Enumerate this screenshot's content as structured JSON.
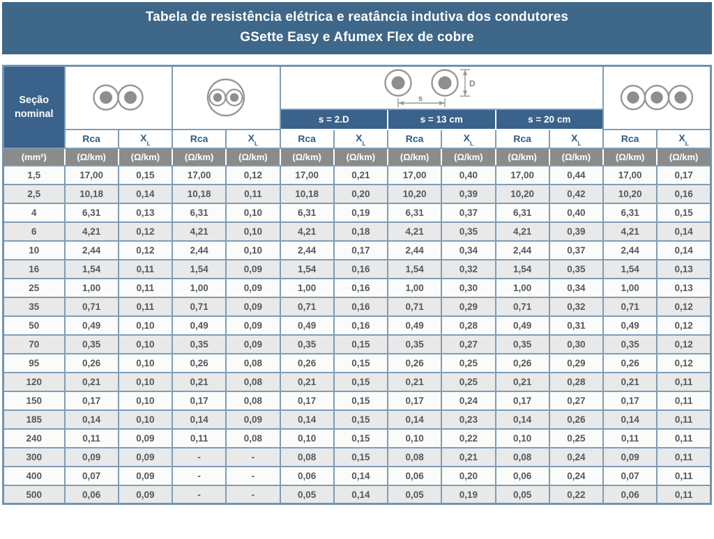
{
  "title": {
    "line1": "Tabela de resistência elétrica e reatância indutiva dos condutores",
    "line2": "GSette Easy e Afumex Flex de cobre"
  },
  "table": {
    "section_header": "Seção nominal",
    "section_unit": "(mm²)",
    "groups": [
      {
        "id": "two-single-cables",
        "description": "two single-core cables touching"
      },
      {
        "id": "two-core-cable",
        "description": "one cable with two cores"
      },
      {
        "id": "spaced-single-cables",
        "description": "two single-core cables spaced s apart, diameter D"
      },
      {
        "id": "three-single-cables",
        "description": "three single-core cables touching"
      }
    ],
    "spacing_subheaders": [
      "s = 2.D",
      "s = 13 cm",
      "s = 20 cm"
    ],
    "col_headers": {
      "rca": "Rca",
      "xl_base": "X",
      "xl_sub": "L"
    },
    "unit_label": "(Ω/km)",
    "diagram_labels": {
      "s": "s",
      "D": "D"
    },
    "rows": [
      [
        "1,5",
        "17,00",
        "0,15",
        "17,00",
        "0,12",
        "17,00",
        "0,21",
        "17,00",
        "0,40",
        "17,00",
        "0,44",
        "17,00",
        "0,17"
      ],
      [
        "2,5",
        "10,18",
        "0,14",
        "10,18",
        "0,11",
        "10,18",
        "0,20",
        "10,20",
        "0,39",
        "10,20",
        "0,42",
        "10,20",
        "0,16"
      ],
      [
        "4",
        "6,31",
        "0,13",
        "6,31",
        "0,10",
        "6,31",
        "0,19",
        "6,31",
        "0,37",
        "6,31",
        "0,40",
        "6,31",
        "0,15"
      ],
      [
        "6",
        "4,21",
        "0,12",
        "4,21",
        "0,10",
        "4,21",
        "0,18",
        "4,21",
        "0,35",
        "4,21",
        "0,39",
        "4,21",
        "0,14"
      ],
      [
        "10",
        "2,44",
        "0,12",
        "2,44",
        "0,10",
        "2,44",
        "0,17",
        "2,44",
        "0,34",
        "2,44",
        "0,37",
        "2,44",
        "0,14"
      ],
      [
        "16",
        "1,54",
        "0,11",
        "1,54",
        "0,09",
        "1,54",
        "0,16",
        "1,54",
        "0,32",
        "1,54",
        "0,35",
        "1,54",
        "0,13"
      ],
      [
        "25",
        "1,00",
        "0,11",
        "1,00",
        "0,09",
        "1,00",
        "0,16",
        "1,00",
        "0,30",
        "1,00",
        "0,34",
        "1,00",
        "0,13"
      ],
      [
        "35",
        "0,71",
        "0,11",
        "0,71",
        "0,09",
        "0,71",
        "0,16",
        "0,71",
        "0,29",
        "0,71",
        "0,32",
        "0,71",
        "0,12"
      ],
      [
        "50",
        "0,49",
        "0,10",
        "0,49",
        "0,09",
        "0,49",
        "0,16",
        "0,49",
        "0,28",
        "0,49",
        "0,31",
        "0,49",
        "0,12"
      ],
      [
        "70",
        "0,35",
        "0,10",
        "0,35",
        "0,09",
        "0,35",
        "0,15",
        "0,35",
        "0,27",
        "0,35",
        "0,30",
        "0,35",
        "0,12"
      ],
      [
        "95",
        "0,26",
        "0,10",
        "0,26",
        "0,08",
        "0,26",
        "0,15",
        "0,26",
        "0,25",
        "0,26",
        "0,29",
        "0,26",
        "0,12"
      ],
      [
        "120",
        "0,21",
        "0,10",
        "0,21",
        "0,08",
        "0,21",
        "0,15",
        "0,21",
        "0,25",
        "0,21",
        "0,28",
        "0,21",
        "0,11"
      ],
      [
        "150",
        "0,17",
        "0,10",
        "0,17",
        "0,08",
        "0,17",
        "0,15",
        "0,17",
        "0,24",
        "0,17",
        "0,27",
        "0,17",
        "0,11"
      ],
      [
        "185",
        "0,14",
        "0,10",
        "0,14",
        "0,09",
        "0,14",
        "0,15",
        "0,14",
        "0,23",
        "0,14",
        "0,26",
        "0,14",
        "0,11"
      ],
      [
        "240",
        "0,11",
        "0,09",
        "0,11",
        "0,08",
        "0,10",
        "0,15",
        "0,10",
        "0,22",
        "0,10",
        "0,25",
        "0,11",
        "0,11"
      ],
      [
        "300",
        "0,09",
        "0,09",
        "-",
        "-",
        "0,08",
        "0,15",
        "0,08",
        "0,21",
        "0,08",
        "0,24",
        "0,09",
        "0,11"
      ],
      [
        "400",
        "0,07",
        "0,09",
        "-",
        "-",
        "0,06",
        "0,14",
        "0,06",
        "0,20",
        "0,06",
        "0,24",
        "0,07",
        "0,11"
      ],
      [
        "500",
        "0,06",
        "0,09",
        "-",
        "-",
        "0,05",
        "0,14",
        "0,05",
        "0,19",
        "0,05",
        "0,22",
        "0,06",
        "0,11"
      ]
    ]
  },
  "colors": {
    "title_bar": "#3E6789",
    "header_blue": "#3A628A",
    "header_text_blue": "#2D5C84",
    "units_gray": "#8B8B89",
    "row_alt_gray": "#E9E9E9",
    "border_blue": "#7C9DB9",
    "data_text": "#55575B",
    "icon_gray": "#97979A"
  }
}
